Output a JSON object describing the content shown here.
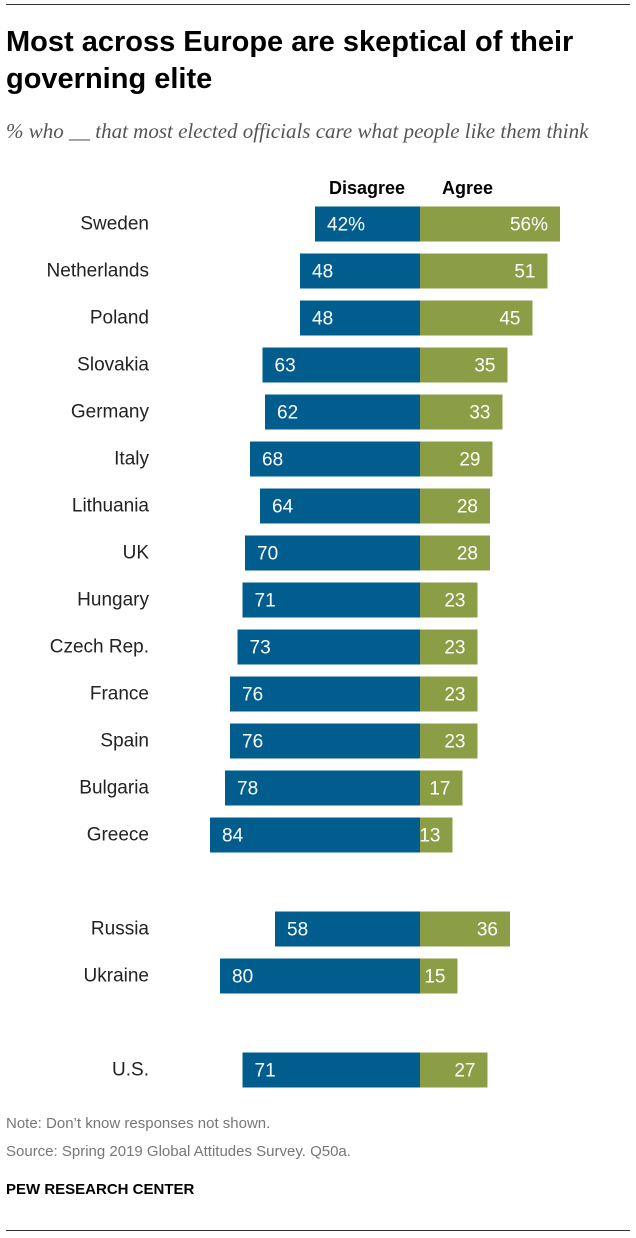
{
  "header": {
    "title": "Most across Europe are skeptical of their governing elite",
    "subtitle": "% who __ that most elected officials care what people like them think"
  },
  "colors": {
    "disagree": "#005D8E",
    "agree": "#8C9E45",
    "label_on_bar": "#FFFFFF"
  },
  "chart_data": {
    "type": "bar",
    "orientation": "horizontal-diverging",
    "title": "Most across Europe are skeptical of their governing elite",
    "subtitle": "% who __ that most elected officials care what people like them think",
    "series": [
      {
        "name": "Disagree",
        "values": [
          42,
          48,
          48,
          63,
          62,
          68,
          64,
          70,
          71,
          73,
          76,
          76,
          78,
          84,
          58,
          80,
          71
        ]
      },
      {
        "name": "Agree",
        "values": [
          56,
          51,
          45,
          35,
          33,
          29,
          28,
          28,
          23,
          23,
          23,
          23,
          17,
          13,
          36,
          15,
          27
        ]
      }
    ],
    "categories": [
      "Sweden",
      "Netherlands",
      "Poland",
      "Slovakia",
      "Germany",
      "Italy",
      "Lithuania",
      "UK",
      "Hungary",
      "Czech Rep.",
      "France",
      "Spain",
      "Bulgaria",
      "Greece",
      "Russia",
      "Ukraine",
      "U.S."
    ],
    "groups": [
      [
        "Sweden",
        "Netherlands",
        "Poland",
        "Slovakia",
        "Germany",
        "Italy",
        "Lithuania",
        "UK",
        "Hungary",
        "Czech Rep.",
        "France",
        "Spain",
        "Bulgaria",
        "Greece"
      ],
      [
        "Russia",
        "Ukraine"
      ],
      [
        "U.S."
      ]
    ],
    "value_labels": {
      "Sweden": {
        "Disagree": "42%",
        "Agree": "56%"
      }
    },
    "xlim": [
      0,
      100
    ],
    "legend": "top-center"
  },
  "footer": {
    "note": "Note: Don’t know responses not shown.",
    "source": "Source: Spring 2019 Global Attitudes Survey. Q50a.",
    "brand": "PEW RESEARCH CENTER"
  }
}
